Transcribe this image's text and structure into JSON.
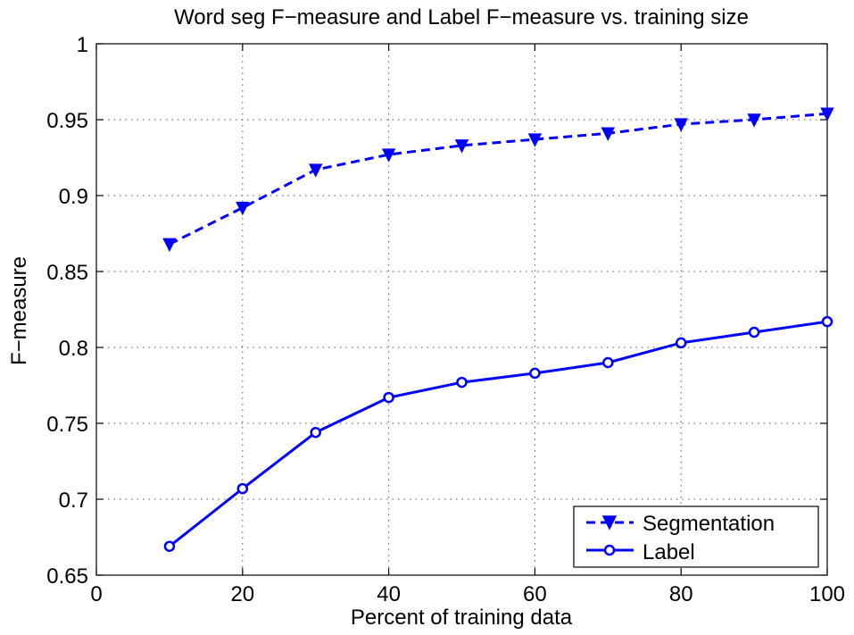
{
  "chart_data": {
    "type": "line",
    "title": "Word seg F−measure and Label F−measure vs. training size",
    "xlabel": "Percent of training data",
    "ylabel": "F−measure",
    "xlim": [
      0,
      100
    ],
    "ylim": [
      0.65,
      1
    ],
    "xticks": [
      "0",
      "20",
      "40",
      "60",
      "80",
      "100"
    ],
    "yticks": [
      "0.65",
      "0.7",
      "0.75",
      "0.8",
      "0.85",
      "0.9",
      "0.95",
      "1"
    ],
    "x": [
      10,
      20,
      30,
      40,
      50,
      60,
      70,
      80,
      90,
      100
    ],
    "series": [
      {
        "name": "Segmentation",
        "values": [
          0.868,
          0.892,
          0.917,
          0.927,
          0.933,
          0.937,
          0.941,
          0.947,
          0.95,
          0.954
        ],
        "style": "dashed",
        "marker": "triangle-down",
        "color": "#0000ff"
      },
      {
        "name": "Label",
        "values": [
          0.669,
          0.707,
          0.744,
          0.767,
          0.777,
          0.783,
          0.79,
          0.803,
          0.81,
          0.817
        ],
        "style": "solid",
        "marker": "circle",
        "color": "#0000ff"
      }
    ],
    "grid": true,
    "legend_position": "bottom-right"
  }
}
